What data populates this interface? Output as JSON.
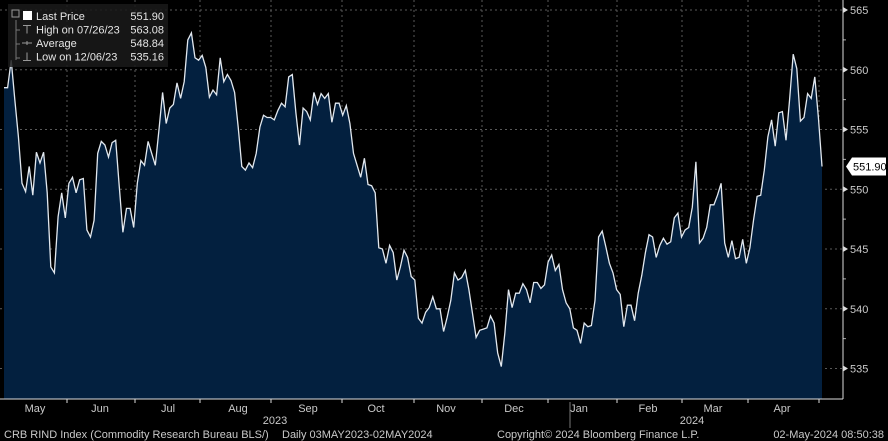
{
  "chart_data": {
    "type": "area",
    "frequency": "Daily",
    "x_range": [
      "2023-05-03",
      "2024-05-02"
    ],
    "y_axis": {
      "position": "right",
      "ylim": [
        532.5,
        566
      ],
      "ticks": [
        535,
        540,
        545,
        550,
        555,
        560,
        565
      ]
    },
    "x_axis": {
      "months": [
        "May",
        "Jun",
        "Jul",
        "Aug",
        "Sep",
        "Oct",
        "Nov",
        "Dec",
        "Jan",
        "Feb",
        "Mar",
        "Apr"
      ],
      "years": [
        "2023",
        "2024"
      ]
    },
    "grid": true,
    "colors": {
      "background": "#000000",
      "fill": "#03203f",
      "line": "#e2e8ef",
      "text": "#c9c9c9"
    },
    "legend": {
      "placement": "top-left",
      "entries": [
        {
          "icon": "white-square-icon",
          "label": "Last Price",
          "value": "551.90"
        },
        {
          "icon": "high-marker-icon",
          "label": "High on 07/26/23",
          "value": "563.08"
        },
        {
          "icon": "average-marker-icon",
          "label": "Average",
          "value": "548.84"
        },
        {
          "icon": "low-marker-icon",
          "label": "Low on 12/06/23",
          "value": "535.16"
        }
      ]
    },
    "last_price_tag": "551.90",
    "series": [
      {
        "name": "Last Price",
        "values": [
          558.5,
          558.5,
          560.8,
          557.5,
          554.4,
          550.5,
          549.8,
          551.9,
          549.5,
          553.1,
          552.2,
          553.1,
          549.7,
          543.5,
          543.0,
          547.7,
          549.7,
          547.6,
          550.5,
          551.0,
          549.7,
          550.8,
          550.9,
          546.6,
          546.0,
          547.4,
          553.0,
          554.0,
          553.7,
          552.7,
          553.9,
          554.1,
          550.2,
          546.4,
          548.4,
          548.4,
          546.8,
          550.5,
          552.4,
          552.0,
          554.0,
          553.0,
          552.0,
          555.0,
          558.1,
          555.5,
          556.8,
          557.1,
          558.9,
          557.6,
          559.0,
          562.5,
          563.08,
          561.0,
          560.8,
          561.2,
          560.2,
          557.7,
          558.3,
          557.9,
          561.0,
          559.0,
          559.6,
          559.1,
          558.1,
          555.2,
          551.9,
          551.6,
          552.2,
          551.8,
          553.0,
          555.2,
          556.2,
          556.0,
          556.0,
          555.8,
          556.6,
          557.2,
          556.9,
          559.4,
          559.6,
          556.4,
          553.7,
          556.8,
          556.5,
          555.8,
          558.1,
          557.1,
          558.0,
          557.6,
          558.0,
          555.6,
          557.2,
          557.2,
          556.2,
          557.0,
          555.5,
          553.0,
          552.0,
          551.0,
          552.6,
          550.4,
          550.3,
          549.7,
          545.1,
          545.0,
          543.8,
          545.3,
          544.7,
          542.4,
          543.5,
          544.9,
          544.3,
          542.7,
          542.4,
          539.2,
          538.8,
          539.7,
          540.1,
          541.0,
          540.0,
          540.0,
          538.1,
          539.3,
          540.7,
          543.0,
          542.4,
          542.6,
          543.2,
          541.6,
          539.6,
          537.6,
          538.2,
          538.3,
          538.4,
          539.4,
          538.8,
          536.3,
          535.16,
          538.0,
          541.6,
          540.1,
          541.3,
          541.3,
          542.1,
          541.6,
          540.5,
          542.2,
          542.2,
          541.7,
          542.0,
          543.9,
          544.5,
          543.2,
          543.7,
          541.6,
          540.5,
          540.0,
          538.4,
          538.2,
          537.1,
          538.8,
          538.5,
          538.6,
          540.7,
          546.0,
          546.5,
          545.2,
          543.8,
          543.0,
          541.6,
          541.2,
          538.5,
          540.3,
          540.3,
          539.0,
          541.3,
          542.8,
          544.7,
          546.2,
          546.0,
          544.3,
          545.3,
          545.9,
          545.4,
          545.6,
          547.6,
          548.0,
          546.0,
          546.6,
          546.8,
          548.5,
          552.3,
          545.5,
          545.9,
          546.8,
          548.7,
          548.7,
          549.5,
          550.5,
          545.5,
          544.3,
          545.7,
          544.2,
          544.3,
          545.8,
          543.8,
          545.1,
          547.4,
          549.4,
          549.5,
          551.6,
          554.4,
          555.8,
          553.6,
          556.4,
          556.5,
          554.1,
          557.5,
          561.3,
          560.1,
          555.7,
          556.0,
          558.0,
          557.6,
          559.4,
          556.0,
          551.9
        ]
      }
    ]
  },
  "footer": {
    "security": "CRB RIND Index (Commodity Research Bureau BLS/)",
    "range": "Daily 03MAY2023-02MAY2024",
    "copyright": "Copyright© 2024 Bloomberg Finance L.P.",
    "timestamp": "02-May-2024 08:50:38"
  }
}
